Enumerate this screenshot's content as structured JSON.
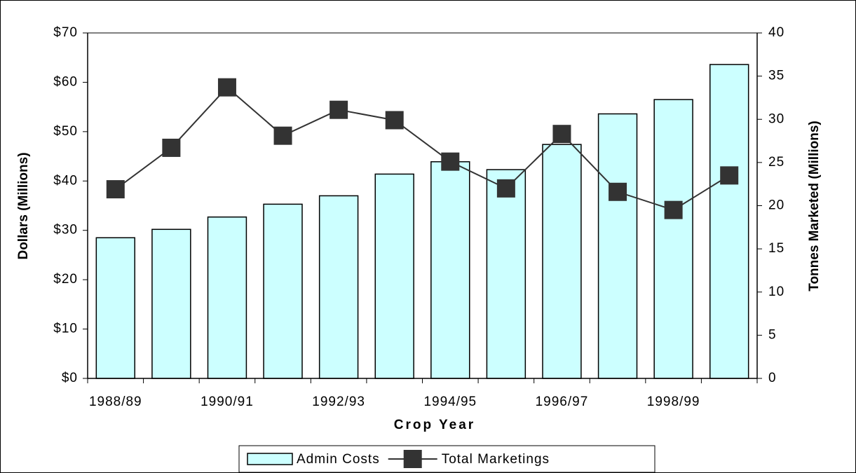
{
  "chart_data": {
    "type": "bar",
    "x_label": "Crop Year",
    "y_label": "Dollars (Millions)",
    "y2_label": "Tonnes Marketed (Millions)",
    "categories": [
      "1988/89",
      null,
      "1990/91",
      null,
      "1992/93",
      null,
      "1994/95",
      null,
      "1996/97",
      null,
      "1998/99",
      null
    ],
    "series": [
      {
        "name": "Admin Costs",
        "type": "bar",
        "color": "#ccffff",
        "values": [
          28.5,
          30.2,
          32.7,
          35.3,
          37.0,
          41.4,
          43.9,
          42.3,
          47.4,
          53.6,
          56.5,
          63.6
        ]
      },
      {
        "name": "Total Marketings",
        "type": "line",
        "axis": "y2",
        "color": "#333333",
        "values": [
          21.9,
          26.7,
          33.7,
          28.1,
          31.1,
          29.9,
          25.1,
          22.0,
          28.3,
          21.6,
          19.5,
          23.5
        ]
      }
    ],
    "ylim": [
      0,
      70
    ],
    "yticks": [
      {
        "value": 0,
        "label": "$0"
      },
      {
        "value": 10,
        "label": "$10"
      },
      {
        "value": 20,
        "label": "$20"
      },
      {
        "value": 30,
        "label": "$30"
      },
      {
        "value": 40,
        "label": "$40"
      },
      {
        "value": 50,
        "label": "$50"
      },
      {
        "value": 60,
        "label": "$60"
      },
      {
        "value": 70,
        "label": "$70"
      }
    ],
    "y2lim": [
      0,
      40
    ],
    "y2ticks": [
      0,
      5,
      10,
      15,
      20,
      25,
      30,
      35,
      40
    ],
    "grid": false,
    "legend": "bottom"
  }
}
